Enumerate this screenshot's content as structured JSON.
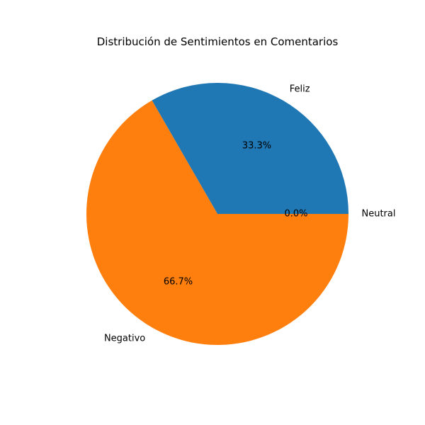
{
  "chart_data": {
    "type": "pie",
    "title": "Distribución de Sentimientos en Comentarios",
    "slices": [
      {
        "label": "Feliz",
        "value": 1,
        "percent_label": "33.3%",
        "color": "#1f77b4"
      },
      {
        "label": "Negativo",
        "value": 2,
        "percent_label": "66.7%",
        "color": "#ff7f0e"
      },
      {
        "label": "Neutral",
        "value": 0,
        "percent_label": "0.0%",
        "color": "#2ca02c"
      }
    ],
    "start_angle_deg": 0,
    "direction": "counterclockwise",
    "legend": "none"
  }
}
